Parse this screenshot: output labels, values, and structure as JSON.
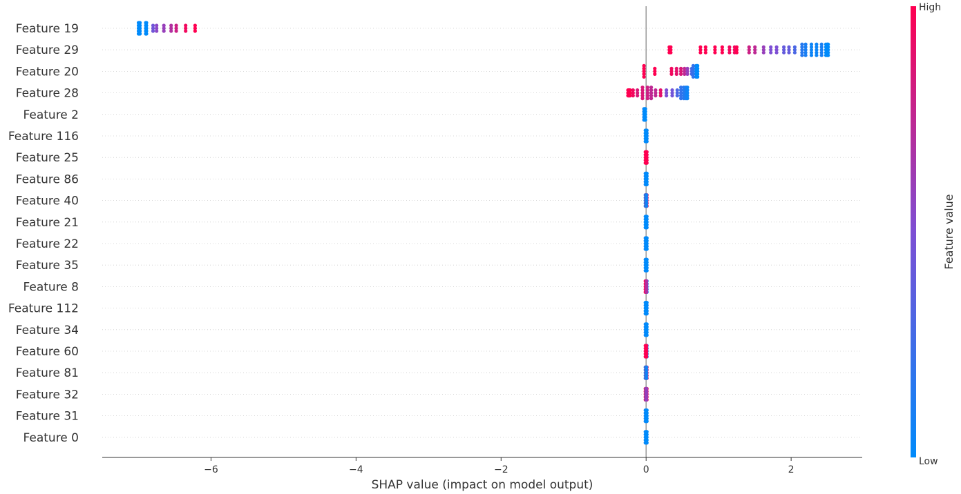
{
  "chart_data": {
    "type": "scatter",
    "subtype": "shap-beeswarm",
    "xlabel": "SHAP value (impact on model output)",
    "x_ticks": [
      -6,
      -4,
      -2,
      0,
      2
    ],
    "x_tick_labels": [
      "−6",
      "−4",
      "−2",
      "0",
      "2"
    ],
    "xlim": [
      -7.5,
      2.98
    ],
    "grid": "horizontal dotted",
    "features": [
      {
        "name": "Feature 19",
        "points": [
          [
            -7.0,
            0.0
          ],
          [
            -6.99,
            0.0
          ],
          [
            -6.98,
            0.0
          ],
          [
            -6.9,
            0.0
          ],
          [
            -6.89,
            0.0
          ],
          [
            -6.8,
            0.45
          ],
          [
            -6.75,
            0.55
          ],
          [
            -6.65,
            0.6
          ],
          [
            -6.55,
            0.7
          ],
          [
            -6.48,
            0.8
          ],
          [
            -6.35,
            0.95
          ],
          [
            -6.22,
            1.0
          ]
        ]
      },
      {
        "name": "Feature 29",
        "points": [
          [
            0.32,
            1.0
          ],
          [
            0.34,
            1.0
          ],
          [
            0.75,
            1.0
          ],
          [
            0.82,
            1.0
          ],
          [
            0.95,
            1.0
          ],
          [
            1.05,
            1.0
          ],
          [
            1.15,
            0.95
          ],
          [
            1.22,
            0.95
          ],
          [
            1.25,
            1.0
          ],
          [
            1.42,
            0.8
          ],
          [
            1.5,
            0.75
          ],
          [
            1.62,
            0.6
          ],
          [
            1.72,
            0.5
          ],
          [
            1.8,
            0.5
          ],
          [
            1.9,
            0.4
          ],
          [
            1.97,
            0.4
          ],
          [
            2.05,
            0.3
          ],
          [
            2.15,
            0.15
          ],
          [
            2.2,
            0.1
          ],
          [
            2.28,
            0.05
          ],
          [
            2.35,
            0.05
          ],
          [
            2.42,
            0.1
          ],
          [
            2.48,
            0.0
          ],
          [
            2.5,
            0.0
          ],
          [
            2.51,
            0.0
          ]
        ]
      },
      {
        "name": "Feature 20",
        "points": [
          [
            -0.03,
            1.0
          ],
          [
            0.12,
            1.0
          ],
          [
            0.35,
            0.95
          ],
          [
            0.42,
            0.9
          ],
          [
            0.48,
            0.85
          ],
          [
            0.53,
            0.75
          ],
          [
            0.57,
            0.6
          ],
          [
            0.63,
            0.3
          ],
          [
            0.65,
            0.2
          ],
          [
            0.69,
            0.05
          ],
          [
            0.7,
            0.0
          ],
          [
            0.71,
            0.0
          ]
        ]
      },
      {
        "name": "Feature 28",
        "points": [
          [
            -0.25,
            1.0
          ],
          [
            -0.24,
            1.0
          ],
          [
            -0.23,
            1.0
          ],
          [
            -0.22,
            1.0
          ],
          [
            -0.18,
            0.95
          ],
          [
            -0.12,
            0.85
          ],
          [
            -0.05,
            0.85
          ],
          [
            0.02,
            0.8
          ],
          [
            0.07,
            0.75
          ],
          [
            0.13,
            0.75
          ],
          [
            0.2,
            0.9
          ],
          [
            0.28,
            0.5
          ],
          [
            0.36,
            0.45
          ],
          [
            0.43,
            0.3
          ],
          [
            0.48,
            0.2
          ],
          [
            0.52,
            0.15
          ],
          [
            0.55,
            0.1
          ],
          [
            0.57,
            0.05
          ]
        ]
      },
      {
        "name": "Feature 2",
        "points": [
          [
            -0.03,
            0.05
          ],
          [
            -0.02,
            0.0
          ],
          [
            -0.01,
            0.0
          ],
          [
            -0.015,
            0.0
          ]
        ]
      },
      {
        "name": "Feature 116",
        "points": [
          [
            -0.01,
            0.0
          ],
          [
            0.0,
            0.0
          ],
          [
            0.01,
            0.05
          ],
          [
            0.005,
            0.0
          ]
        ]
      },
      {
        "name": "Feature 25",
        "points": [
          [
            -0.01,
            1.0
          ],
          [
            0.0,
            1.0
          ],
          [
            0.01,
            0.95
          ],
          [
            0.005,
            1.0
          ]
        ]
      },
      {
        "name": "Feature 86",
        "points": [
          [
            -0.01,
            0.05
          ],
          [
            0.0,
            0.0
          ],
          [
            0.01,
            0.0
          ],
          [
            0.005,
            0.0
          ]
        ]
      },
      {
        "name": "Feature 40",
        "points": [
          [
            -0.01,
            0.0
          ],
          [
            0.0,
            1.0
          ],
          [
            0.01,
            0.95
          ],
          [
            0.005,
            0.05
          ]
        ]
      },
      {
        "name": "Feature 21",
        "points": [
          [
            -0.01,
            0.0
          ],
          [
            0.0,
            0.0
          ],
          [
            0.01,
            0.05
          ],
          [
            0.005,
            0.0
          ]
        ]
      },
      {
        "name": "Feature 22",
        "points": [
          [
            -0.01,
            0.05
          ],
          [
            0.0,
            0.0
          ],
          [
            0.01,
            0.0
          ],
          [
            0.005,
            0.0
          ]
        ]
      },
      {
        "name": "Feature 35",
        "points": [
          [
            -0.01,
            0.0
          ],
          [
            0.0,
            0.05
          ],
          [
            0.01,
            0.0
          ],
          [
            0.005,
            0.0
          ]
        ]
      },
      {
        "name": "Feature 8",
        "points": [
          [
            -0.01,
            1.0
          ],
          [
            0.0,
            0.9
          ],
          [
            0.01,
            0.1
          ],
          [
            0.005,
            0.7
          ]
        ]
      },
      {
        "name": "Feature 112",
        "points": [
          [
            -0.01,
            0.0
          ],
          [
            0.0,
            0.0
          ],
          [
            0.01,
            0.05
          ],
          [
            0.005,
            0.0
          ]
        ]
      },
      {
        "name": "Feature 34",
        "points": [
          [
            -0.01,
            0.05
          ],
          [
            0.0,
            0.0
          ],
          [
            0.01,
            0.0
          ],
          [
            0.005,
            0.0
          ]
        ]
      },
      {
        "name": "Feature 60",
        "points": [
          [
            -0.01,
            1.0
          ],
          [
            0.0,
            0.95
          ],
          [
            0.01,
            0.1
          ],
          [
            0.005,
            1.0
          ]
        ]
      },
      {
        "name": "Feature 81",
        "points": [
          [
            -0.01,
            0.0
          ],
          [
            0.0,
            1.0
          ],
          [
            0.01,
            0.9
          ],
          [
            0.005,
            0.05
          ]
        ]
      },
      {
        "name": "Feature 32",
        "points": [
          [
            -0.01,
            1.0
          ],
          [
            0.0,
            0.1
          ],
          [
            0.01,
            0.95
          ],
          [
            0.005,
            0.6
          ]
        ]
      },
      {
        "name": "Feature 31",
        "points": [
          [
            -0.01,
            0.05
          ],
          [
            0.0,
            0.0
          ],
          [
            0.01,
            0.0
          ],
          [
            0.005,
            0.0
          ]
        ]
      },
      {
        "name": "Feature 0",
        "points": [
          [
            -0.01,
            0.0
          ],
          [
            0.0,
            0.05
          ],
          [
            0.01,
            0.0
          ],
          [
            0.005,
            0.0
          ]
        ]
      }
    ],
    "colorbar": {
      "label": "Feature value",
      "high_label": "High",
      "low_label": "Low",
      "low_color": "#008bfb",
      "mid_color": "#7d4fd4",
      "high_color": "#ff0051"
    },
    "zero_line_color": "#999999"
  }
}
